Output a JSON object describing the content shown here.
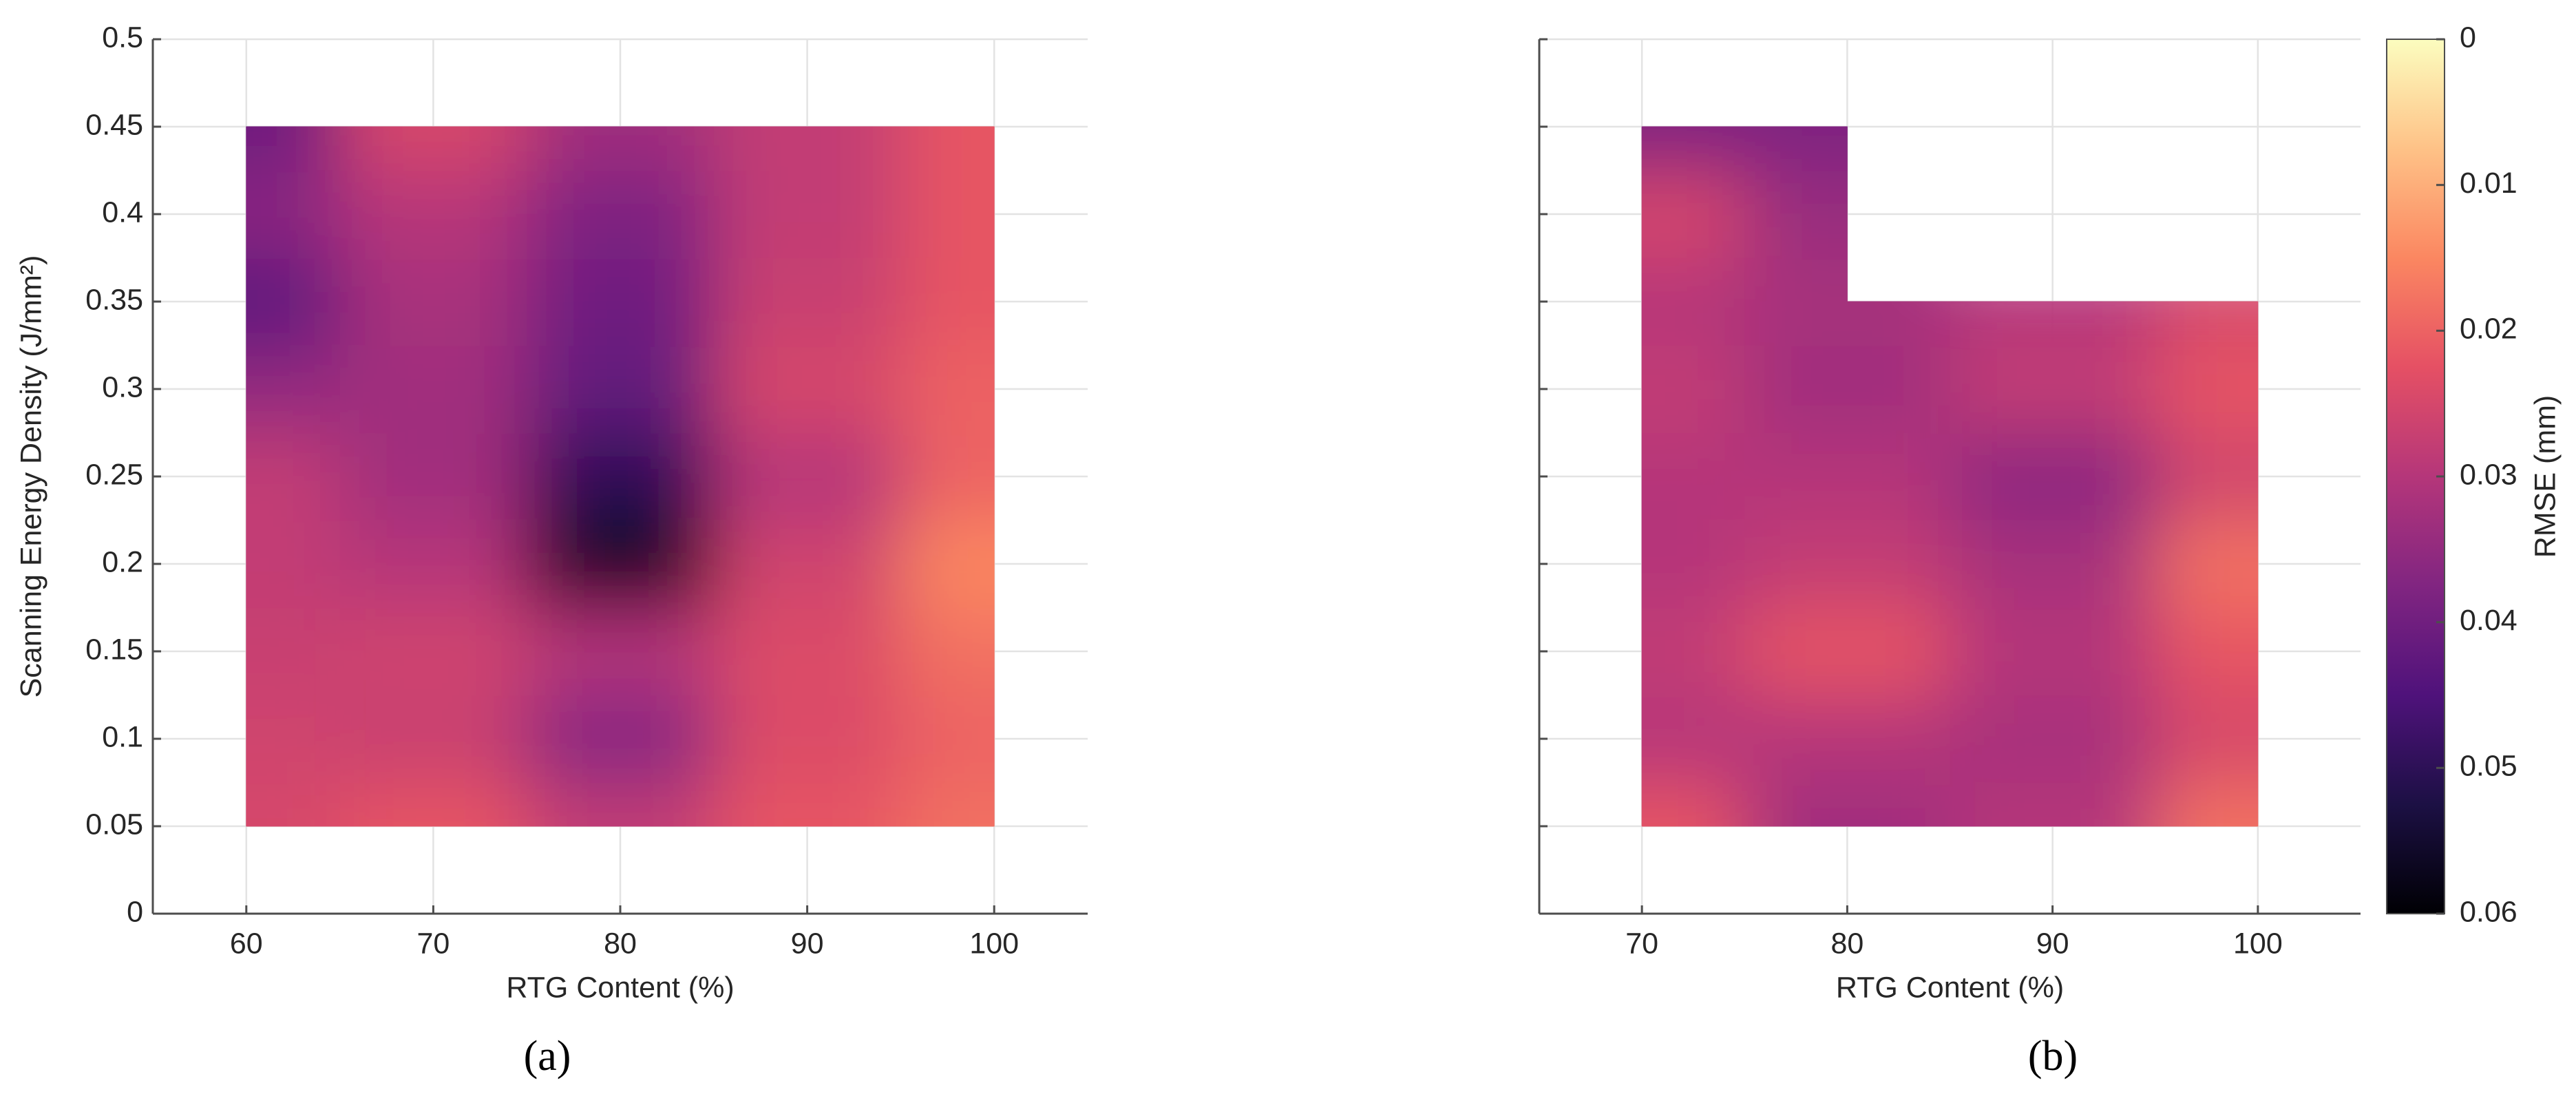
{
  "chart_data": [
    {
      "type": "heatmap",
      "panel_label": "(a)",
      "xlabel": "RTG Content (%)",
      "ylabel": "Scanning Energy Density (J/mm²)",
      "x": [
        60,
        70,
        80,
        90,
        100
      ],
      "y": [
        0.05,
        0.1,
        0.15,
        0.2,
        0.25,
        0.3,
        0.35,
        0.4,
        0.45
      ],
      "values": [
        [
          0.025,
          0.022,
          0.028,
          0.022,
          0.018
        ],
        [
          0.026,
          0.027,
          0.037,
          0.024,
          0.02
        ],
        [
          0.027,
          0.026,
          0.03,
          0.024,
          0.018
        ],
        [
          0.028,
          0.03,
          0.057,
          0.026,
          0.015
        ],
        [
          0.028,
          0.033,
          0.05,
          0.03,
          0.02
        ],
        [
          0.035,
          0.033,
          0.042,
          0.025,
          0.02
        ],
        [
          0.043,
          0.032,
          0.04,
          0.027,
          0.022
        ],
        [
          0.036,
          0.03,
          0.038,
          0.028,
          0.022
        ],
        [
          0.04,
          0.025,
          0.033,
          0.028,
          0.022
        ]
      ],
      "xlim": [
        55,
        105
      ],
      "xticks": [
        60,
        70,
        80,
        90,
        100
      ],
      "ylim": [
        0,
        0.5
      ],
      "yticks": [
        0,
        0.05,
        0.1,
        0.15,
        0.2,
        0.25,
        0.3,
        0.35,
        0.4,
        0.45,
        0.5
      ],
      "ytick_labels": true,
      "grid": true
    },
    {
      "type": "heatmap",
      "panel_label": "(b)",
      "xlabel": "RTG Content (%)",
      "x": [
        70,
        80,
        90,
        100
      ],
      "y": [
        0.05,
        0.1,
        0.15,
        0.2,
        0.25,
        0.3,
        0.35,
        0.4,
        0.45
      ],
      "values": [
        [
          0.022,
          0.033,
          0.03,
          0.018
        ],
        [
          0.03,
          0.03,
          0.032,
          0.025
        ],
        [
          0.028,
          0.022,
          0.03,
          0.022
        ],
        [
          0.03,
          0.028,
          0.032,
          0.018
        ],
        [
          0.03,
          0.03,
          0.036,
          0.026
        ],
        [
          0.028,
          0.033,
          0.028,
          0.022
        ],
        [
          0.03,
          0.032,
          0.03,
          0.025
        ],
        [
          0.025,
          0.034,
          null,
          null
        ],
        [
          0.038,
          0.038,
          null,
          null
        ]
      ],
      "xlim": [
        65,
        105
      ],
      "xticks": [
        70,
        80,
        90,
        100
      ],
      "ylim": [
        0,
        0.5
      ],
      "yticks": [
        0,
        0.05,
        0.1,
        0.15,
        0.2,
        0.25,
        0.3,
        0.35,
        0.4,
        0.45,
        0.5
      ],
      "ytick_labels": false,
      "grid": true,
      "colorbar": {
        "label": "RMSE (mm)",
        "clim": [
          0,
          0.06
        ],
        "ticks": [
          0,
          0.01,
          0.02,
          0.03,
          0.04,
          0.05,
          0.06
        ],
        "reversed": true,
        "colormap": [
          "#000004",
          "#1c1044",
          "#4f127b",
          "#812581",
          "#b5367a",
          "#e55064",
          "#fb8761",
          "#fec287",
          "#fcfdbf"
        ]
      }
    }
  ]
}
